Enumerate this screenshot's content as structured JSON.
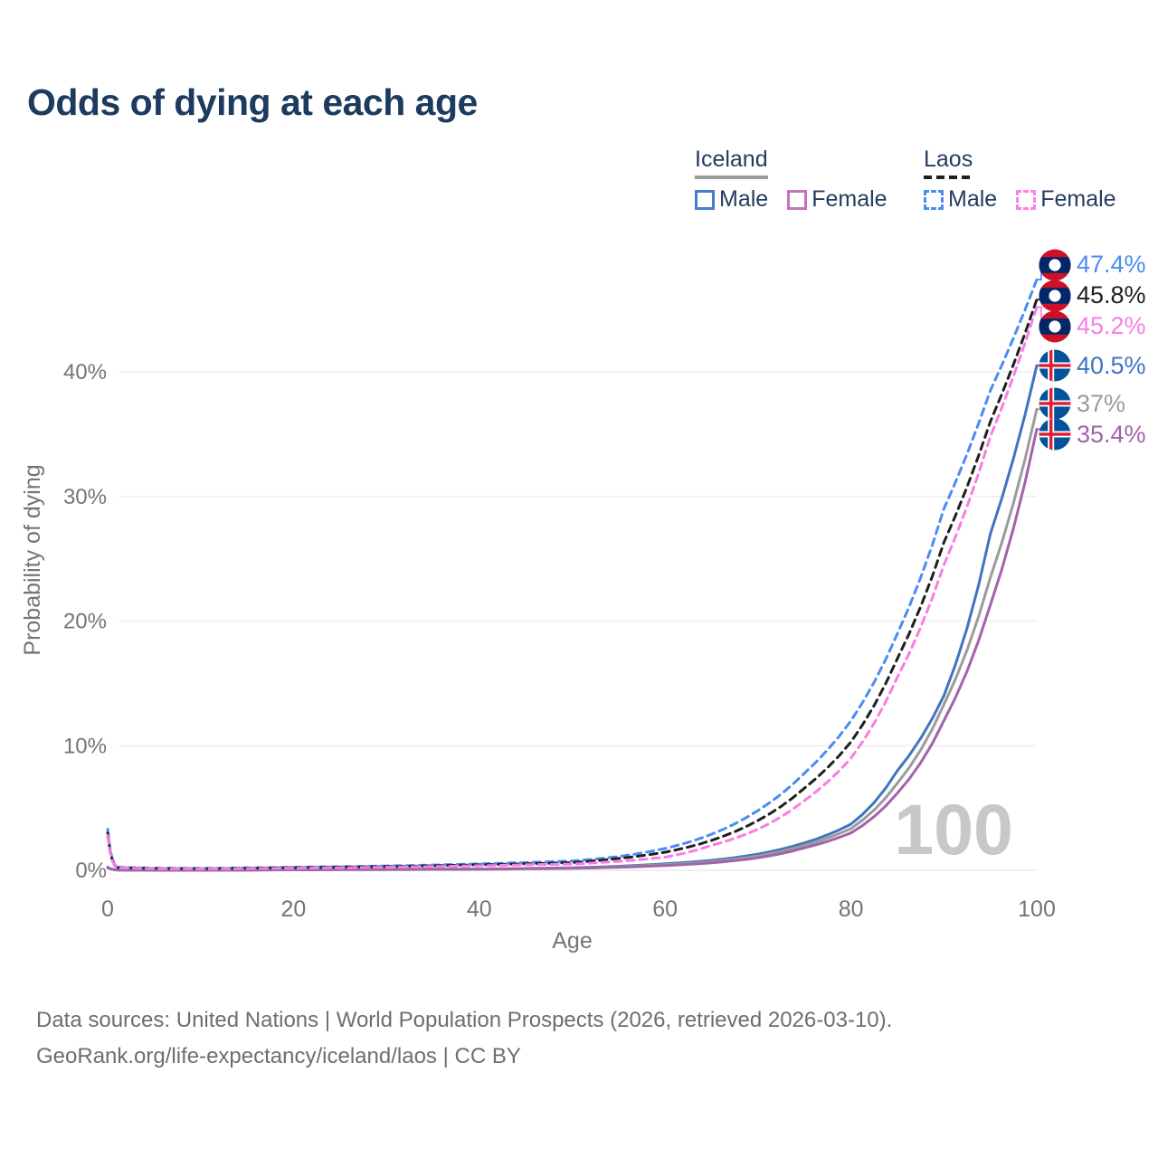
{
  "title": "Odds of dying at each age",
  "legend": {
    "groups": [
      {
        "name": "Iceland",
        "line_style": "solid",
        "line_color": "#9b9b9b",
        "items": [
          {
            "label": "Male",
            "color": "#4a7dc9",
            "dashed": false
          },
          {
            "label": "Female",
            "color": "#c173bd",
            "dashed": false
          }
        ]
      },
      {
        "name": "Laos",
        "line_style": "dashed",
        "line_color": "#1f1f1f",
        "items": [
          {
            "label": "Male",
            "color": "#4a8df2",
            "dashed": true
          },
          {
            "label": "Female",
            "color": "#fd80ea",
            "dashed": true
          }
        ]
      }
    ]
  },
  "chart_data": {
    "type": "line",
    "title": "Odds of dying at each age",
    "xlabel": "Age",
    "ylabel": "Probability of dying",
    "xlim": [
      0,
      100
    ],
    "ylim_pct": [
      0,
      44
    ],
    "xticks": [
      0,
      20,
      40,
      60,
      80,
      100
    ],
    "yticks": [
      {
        "value": 0,
        "label": "0%"
      },
      {
        "value": 10,
        "label": "10%"
      },
      {
        "value": 20,
        "label": "20%"
      },
      {
        "value": 30,
        "label": "30%"
      },
      {
        "value": 40,
        "label": "40%"
      }
    ],
    "grid": "horizontal",
    "legend_position": "top-right",
    "hover_age_indicator": "100",
    "ages": [
      0,
      1,
      5,
      10,
      20,
      30,
      40,
      45,
      50,
      55,
      60,
      65,
      70,
      75,
      80,
      85,
      90,
      95,
      100
    ],
    "series": [
      {
        "id": "laos-male",
        "name": "Laos Male",
        "country": "laos",
        "sex": "male",
        "color": "#4a8df2",
        "dashed": true,
        "end_label": "47.4%",
        "end_value_pct": 47.4,
        "values_pct": [
          3.3,
          0.25,
          0.17,
          0.15,
          0.25,
          0.35,
          0.52,
          0.62,
          0.75,
          1.1,
          1.75,
          2.9,
          4.8,
          7.8,
          12.0,
          19.0,
          29.0,
          38.5,
          47.4
        ]
      },
      {
        "id": "laos-all",
        "name": "Laos (both sexes)",
        "country": "laos",
        "sex": "all",
        "color": "#1f1f1f",
        "dashed": true,
        "end_label": "45.8%",
        "end_value_pct": 45.8,
        "values_pct": [
          3.0,
          0.22,
          0.15,
          0.13,
          0.21,
          0.3,
          0.44,
          0.52,
          0.62,
          0.95,
          1.45,
          2.4,
          4.0,
          6.6,
          10.3,
          17.0,
          26.3,
          36.0,
          45.8
        ]
      },
      {
        "id": "laos-female",
        "name": "Laos Female",
        "country": "laos",
        "sex": "female",
        "color": "#f97de4",
        "dashed": true,
        "end_label": "45.2%",
        "end_value_pct": 45.2,
        "values_pct": [
          2.8,
          0.2,
          0.13,
          0.11,
          0.17,
          0.25,
          0.37,
          0.44,
          0.5,
          0.72,
          1.05,
          2.0,
          3.3,
          5.6,
          9.0,
          15.5,
          24.5,
          34.8,
          45.2
        ]
      },
      {
        "id": "iceland-male",
        "name": "Iceland Male",
        "country": "iceland",
        "sex": "male",
        "color": "#3f74c2",
        "dashed": false,
        "end_label": "40.5%",
        "end_value_pct": 40.5,
        "values_pct": [
          0.25,
          0.03,
          0.01,
          0.01,
          0.06,
          0.08,
          0.11,
          0.15,
          0.2,
          0.33,
          0.52,
          0.8,
          1.3,
          2.2,
          3.7,
          8.0,
          14.0,
          27.0,
          40.5
        ]
      },
      {
        "id": "iceland-all",
        "name": "Iceland (both sexes)",
        "country": "iceland",
        "sex": "all",
        "color": "#9b9b9b",
        "dashed": false,
        "end_label": "37%",
        "end_value_pct": 37.0,
        "values_pct": [
          0.22,
          0.03,
          0.01,
          0.01,
          0.05,
          0.07,
          0.1,
          0.14,
          0.18,
          0.29,
          0.45,
          0.7,
          1.15,
          2.0,
          3.35,
          7.0,
          13.3,
          23.5,
          37.0
        ]
      },
      {
        "id": "iceland-female",
        "name": "Iceland Female",
        "country": "iceland",
        "sex": "female",
        "color": "#a263a8",
        "dashed": false,
        "end_label": "35.4%",
        "end_value_pct": 35.4,
        "values_pct": [
          0.2,
          0.03,
          0.01,
          0.01,
          0.04,
          0.06,
          0.08,
          0.12,
          0.16,
          0.25,
          0.38,
          0.6,
          1.0,
          1.8,
          3.0,
          6.2,
          12.0,
          21.3,
          35.4
        ]
      }
    ]
  },
  "flags": {
    "laos": {
      "red": "#ce1126",
      "blue": "#002868",
      "circle": "#ffffff"
    },
    "iceland": {
      "blue": "#02529c",
      "cross_white": "#ffffff",
      "cross_red": "#dc1e35"
    }
  },
  "style": {
    "axis_text_color": "#757575",
    "grid_color": "#ececec",
    "zero_line_color": "#e3e3e3",
    "watermark_color": "#c8c8c8",
    "title_color": "#1d3a5f"
  },
  "footer": {
    "line1": "Data sources: United Nations | World Population Prospects (2026, retrieved 2026-03-10).",
    "line2": "GeoRank.org/life-expectancy/iceland/laos | CC BY"
  }
}
